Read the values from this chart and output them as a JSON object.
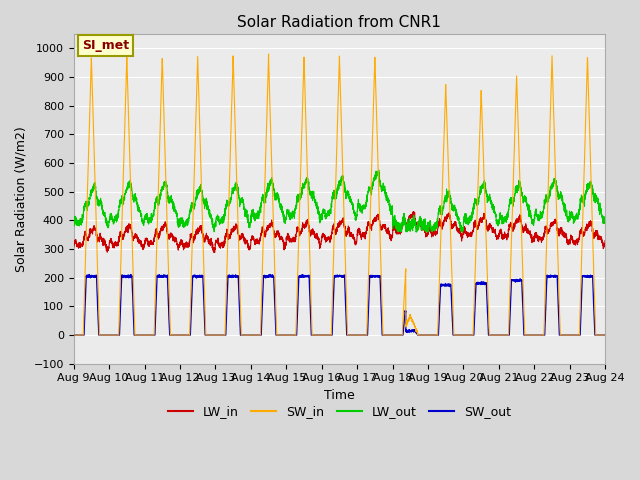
{
  "title": "Solar Radiation from CNR1",
  "xlabel": "Time",
  "ylabel": "Solar Radiation (W/m2)",
  "ylim": [
    -100,
    1050
  ],
  "x_tick_labels": [
    "Aug 9",
    "Aug 10",
    "Aug 11",
    "Aug 12",
    "Aug 13",
    "Aug 14",
    "Aug 15",
    "Aug 16",
    "Aug 17",
    "Aug 18",
    "Aug 19",
    "Aug 20",
    "Aug 21",
    "Aug 22",
    "Aug 23",
    "Aug 24"
  ],
  "annotation_text": "SI_met",
  "annotation_bg": "#ffffcc",
  "annotation_border": "#999900",
  "annotation_text_color": "#880000",
  "series": {
    "LW_in": {
      "color": "#cc0000",
      "label": "LW_in"
    },
    "SW_in": {
      "color": "#ffaa00",
      "label": "SW_in"
    },
    "LW_out": {
      "color": "#00cc00",
      "label": "LW_out"
    },
    "SW_out": {
      "color": "#0000cc",
      "label": "SW_out"
    }
  },
  "bg_color": "#d8d8d8",
  "plot_bg": "#ebebeb",
  "grid_color": "#ffffff",
  "n_days": 15,
  "pts_per_day": 288
}
